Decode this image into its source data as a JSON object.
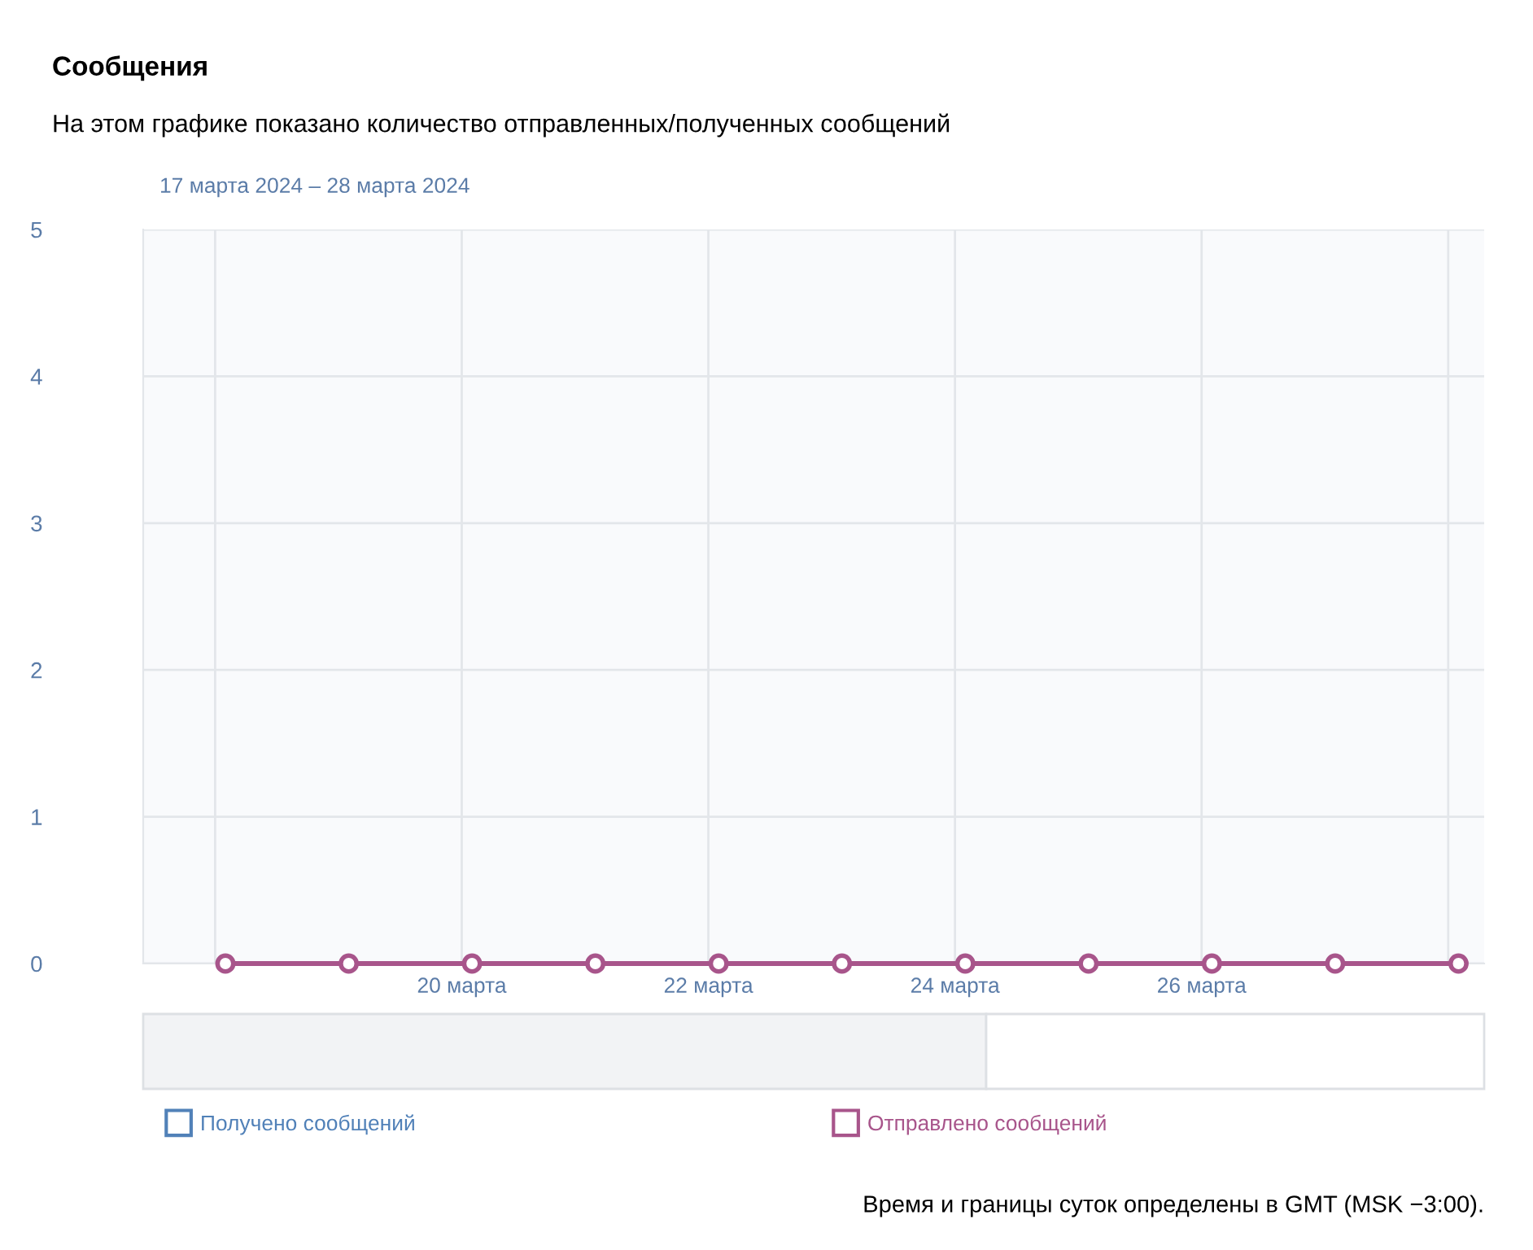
{
  "chart_data": {
    "type": "line",
    "title": "Сообщения",
    "subtitle": "На этом графике показано количество отправленных/полученных сообщений",
    "annotations": [
      "17 марта 2024 – 28 марта 2024",
      "Время и границы суток определены в GMT (MSK −3:00)."
    ],
    "x": [
      "2024-03-18T02:00",
      "2024-03-19T02:00",
      "2024-03-20T02:00",
      "2024-03-21T02:00",
      "2024-03-22T02:00",
      "2024-03-23T02:00",
      "2024-03-24T02:00",
      "2024-03-25T02:00",
      "2024-03-26T02:00",
      "2024-03-27T02:00",
      "2024-03-28T02:00"
    ],
    "series": [
      {
        "name": "Получено сообщений",
        "color": "#5181b8",
        "values": [
          null,
          null,
          null,
          null,
          null,
          null,
          null,
          null,
          null,
          null,
          null
        ]
      },
      {
        "name": "Отправлено сообщений",
        "color": "#a8558b",
        "values": [
          0,
          0,
          0,
          0,
          0,
          0,
          0,
          0,
          0,
          0,
          0
        ]
      }
    ],
    "xlim": [
      "2024-03-17T10:00",
      "2024-03-28T07:00"
    ],
    "xticks": [
      {
        "value": "2024-03-18",
        "label": null
      },
      {
        "value": "2024-03-20",
        "label": "20 марта"
      },
      {
        "value": "2024-03-22",
        "label": "22 марта"
      },
      {
        "value": "2024-03-24",
        "label": "24 марта"
      },
      {
        "value": "2024-03-26",
        "label": "26 марта"
      },
      {
        "value": "2024-03-28",
        "label": null
      }
    ],
    "ylim": [
      0,
      5
    ],
    "yticks": [
      0,
      1,
      2,
      3,
      4,
      5
    ],
    "grid": true,
    "legend": "bottom",
    "marker": "circle",
    "line_style": "solid"
  }
}
